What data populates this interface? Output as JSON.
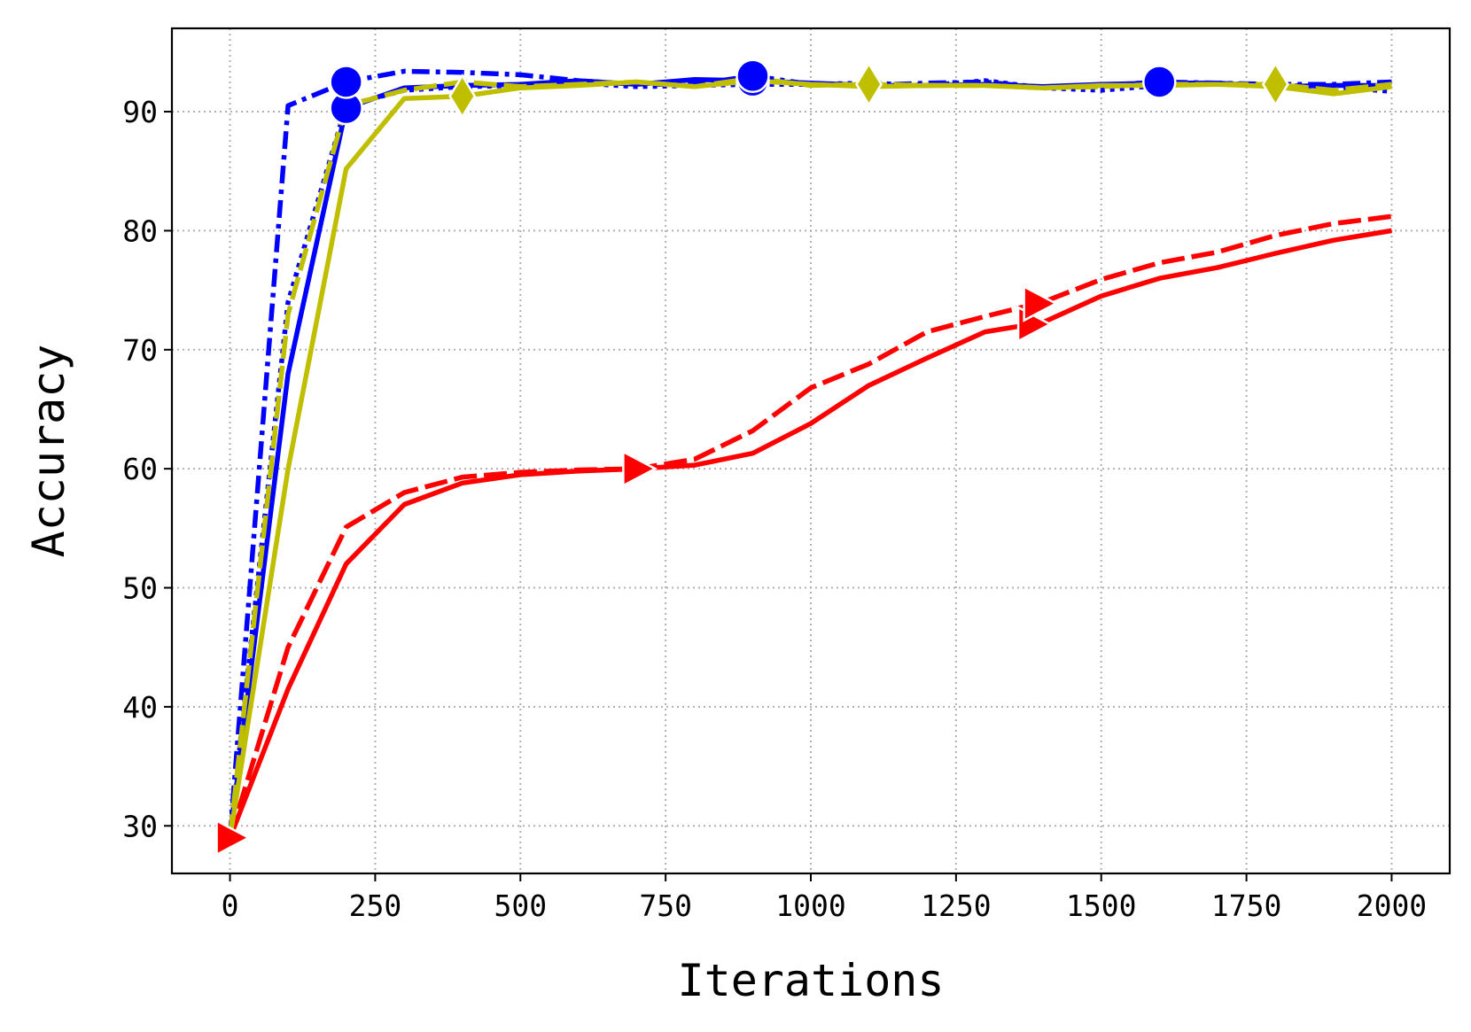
{
  "chart_data": {
    "type": "line",
    "title": "",
    "xlabel": "Iterations",
    "ylabel": "Accuracy",
    "xlim": [
      -100,
      2100
    ],
    "ylim": [
      26,
      97
    ],
    "xticks": [
      0,
      250,
      500,
      750,
      1000,
      1250,
      1500,
      1750,
      2000
    ],
    "yticks": [
      30,
      40,
      50,
      60,
      70,
      80,
      90
    ],
    "xtick_labels": [
      "0",
      "250",
      "500",
      "750",
      "1000",
      "1250",
      "1500",
      "1750",
      "2000"
    ],
    "ytick_labels": [
      "30",
      "40",
      "50",
      "60",
      "70",
      "80",
      "90"
    ],
    "grid": true,
    "legend": "none",
    "x": [
      0,
      100,
      200,
      300,
      400,
      500,
      600,
      700,
      800,
      900,
      1000,
      1100,
      1200,
      1300,
      1400,
      1500,
      1600,
      1700,
      1800,
      1900,
      2000
    ],
    "series": [
      {
        "color": "#0000ff",
        "dash": "solid",
        "marker": "circle",
        "values": [
          29,
          68,
          90.3,
          92,
          92.2,
          92.3,
          92.6,
          92.3,
          92.7,
          92.6,
          92.4,
          92.2,
          92.2,
          92.3,
          92.1,
          92.3,
          92.4,
          92.4,
          92.1,
          92.2,
          92.2
        ],
        "markers_at": [
          200,
          900
        ]
      },
      {
        "color": "#0000ff",
        "dash": "dashdot",
        "marker": "circle",
        "values": [
          29,
          90.5,
          92.5,
          93.4,
          93.3,
          93.1,
          92.6,
          92.3,
          92.3,
          93,
          92.3,
          92.2,
          92.4,
          92.5,
          92.0,
          92.2,
          92.5,
          92.4,
          92.3,
          92.3,
          92.5
        ],
        "markers_at": [
          200,
          900,
          1600
        ]
      },
      {
        "color": "#0000ff",
        "dash": "dotted",
        "marker": "circle",
        "values": [
          29,
          74,
          90.5,
          91.8,
          92.1,
          92.2,
          92.4,
          92.1,
          92.2,
          92.3,
          92.3,
          92.4,
          92.2,
          92.6,
          92.0,
          91.8,
          92.2,
          92.4,
          92.2,
          92.1,
          91.7
        ],
        "markers_at": []
      },
      {
        "color": "#ff0000",
        "dash": "solid",
        "marker": "triangle-right",
        "values": [
          29,
          41.5,
          52,
          57,
          58.8,
          59.5,
          59.8,
          60,
          60.3,
          61.3,
          63.8,
          67,
          69.3,
          71.5,
          72.3,
          74.5,
          76,
          76.9,
          78.1,
          79.2,
          80
        ],
        "markers_at": [
          0,
          1380
        ]
      },
      {
        "color": "#ff0000",
        "dash": "dashed",
        "marker": "triangle-right",
        "values": [
          29,
          45,
          55.1,
          58,
          59.3,
          59.7,
          59.9,
          60,
          60.8,
          63.2,
          66.8,
          68.8,
          71.5,
          72.8,
          74,
          75.9,
          77.3,
          78.2,
          79.6,
          80.6,
          81.2
        ],
        "markers_at": [
          700,
          1390
        ]
      },
      {
        "color": "#bfbf00",
        "dash": "solid",
        "marker": "diamond",
        "values": [
          29,
          60,
          85.2,
          91.1,
          91.3,
          92.0,
          92.2,
          92.5,
          92.1,
          92.6,
          92.3,
          92.1,
          92.2,
          92.2,
          92.0,
          92.2,
          92.2,
          92.3,
          92.1,
          91.5,
          92.1
        ],
        "markers_at": [
          400
        ]
      },
      {
        "color": "#bfbf00",
        "dash": "dashed",
        "marker": "diamond",
        "values": [
          29,
          73,
          90.5,
          91.8,
          92.5,
          92.1,
          92.3,
          92.5,
          92.1,
          92.8,
          92.2,
          92.3,
          92.2,
          92.2,
          92.0,
          92.1,
          92.3,
          92.3,
          92.3,
          91.8,
          92.3
        ],
        "markers_at": [
          1100,
          1800
        ]
      }
    ]
  }
}
